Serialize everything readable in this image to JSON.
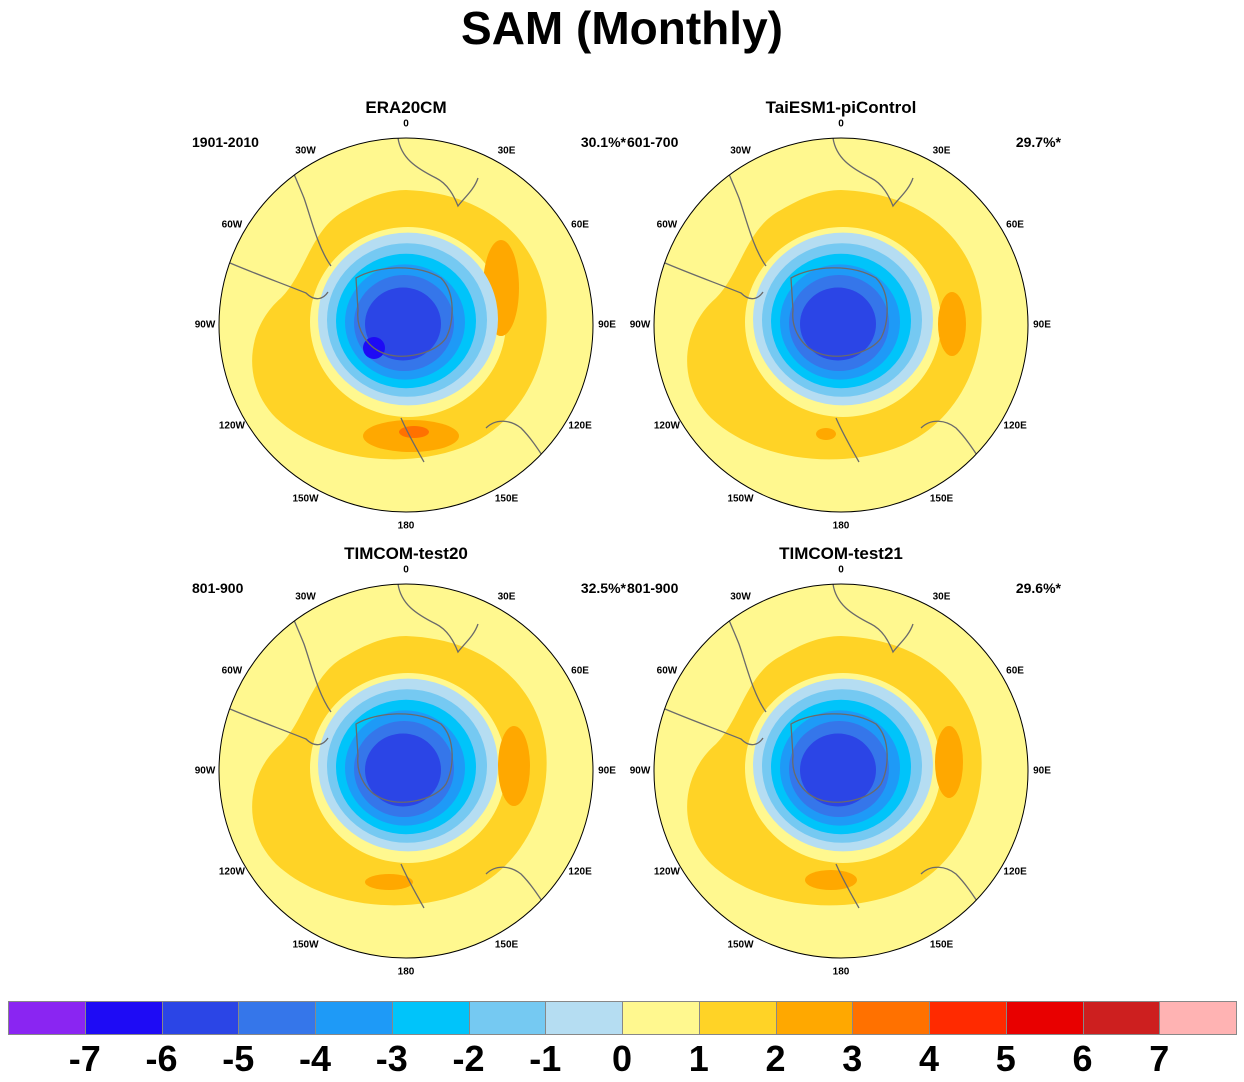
{
  "title": "SAM (Monthly)",
  "longitude_labels": [
    "0",
    "30E",
    "60E",
    "90E",
    "120E",
    "150E",
    "180",
    "150W",
    "120W",
    "90W",
    "60W",
    "30W"
  ],
  "panels": [
    {
      "name": "ERA20CM",
      "period": "1901-2010",
      "percent": "30.1%*"
    },
    {
      "name": "TaiESM1-piControl",
      "period": "601-700",
      "percent": "29.7%*"
    },
    {
      "name": "TIMCOM-test20",
      "period": "801-900",
      "percent": "32.5%*"
    },
    {
      "name": "TIMCOM-test21",
      "period": "801-900",
      "percent": "29.6%*"
    }
  ],
  "colorbar": {
    "labels": [
      "-7",
      "-6",
      "-5",
      "-4",
      "-3",
      "-2",
      "-1",
      "0",
      "1",
      "2",
      "3",
      "4",
      "5",
      "6",
      "7"
    ],
    "colors": [
      "#8a25f2",
      "#1e0bf5",
      "#2b45e6",
      "#3576ea",
      "#1e9af7",
      "#00c4fa",
      "#75c9f2",
      "#b5ddf2",
      "#fff88f",
      "#ffd326",
      "#ffa800",
      "#ff7100",
      "#ff2a00",
      "#e80000",
      "#cd1f1f",
      "#ffb3b3"
    ]
  }
}
